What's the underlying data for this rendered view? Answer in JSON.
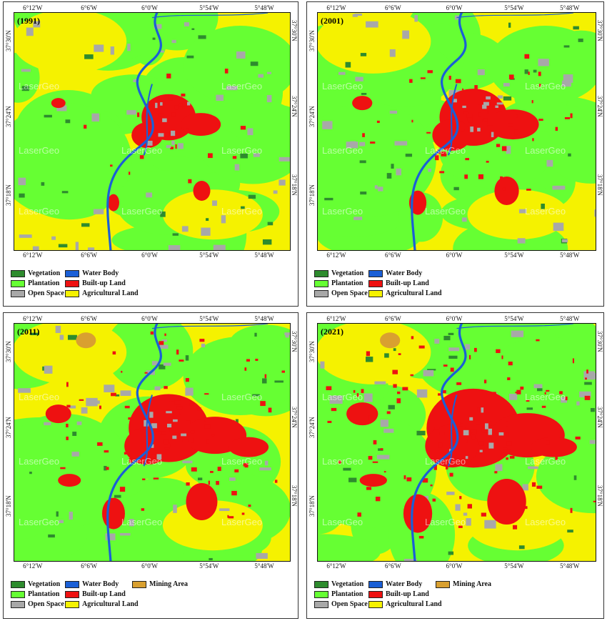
{
  "colors": {
    "vegetation": "#2e8b2e",
    "plantation": "#66ff33",
    "open_space": "#a8a8a8",
    "water_body": "#1a5fd6",
    "built_up": "#ee1111",
    "agricultural": "#f5f200",
    "mining": "#d9a030"
  },
  "ticks": {
    "lon": [
      "6°12'W",
      "6°6'W",
      "6°0'W",
      "5°54'W",
      "5°48'W"
    ],
    "lat": [
      "37°30'N",
      "37°24'N",
      "37°18'N"
    ]
  },
  "watermark": "LaserGeo",
  "panels": [
    {
      "year": "(1991)",
      "legend": [
        {
          "label": "Vegetation",
          "color_key": "vegetation"
        },
        {
          "label": "Plantation",
          "color_key": "plantation"
        },
        {
          "label": "Open Space",
          "color_key": "open_space"
        },
        {
          "label": "Water Body",
          "color_key": "water_body"
        },
        {
          "label": "Built-up Land",
          "color_key": "built_up"
        },
        {
          "label": "Agricultural Land",
          "color_key": "agricultural"
        }
      ]
    },
    {
      "year": "(2001)",
      "legend": [
        {
          "label": "Vegetation",
          "color_key": "vegetation"
        },
        {
          "label": "Plantation",
          "color_key": "plantation"
        },
        {
          "label": "Open Space",
          "color_key": "open_space"
        },
        {
          "label": "Water Body",
          "color_key": "water_body"
        },
        {
          "label": "Built-up Land",
          "color_key": "built_up"
        },
        {
          "label": "Agricultural Land",
          "color_key": "agricultural"
        }
      ]
    },
    {
      "year": "(2011)",
      "legend": [
        {
          "label": "Vegetation",
          "color_key": "vegetation"
        },
        {
          "label": "Plantation",
          "color_key": "plantation"
        },
        {
          "label": "Open Space",
          "color_key": "open_space"
        },
        {
          "label": "Water Body",
          "color_key": "water_body"
        },
        {
          "label": "Built-up Land",
          "color_key": "built_up"
        },
        {
          "label": "Agricultural Land",
          "color_key": "agricultural"
        },
        {
          "label": "Mining Area",
          "color_key": "mining"
        }
      ]
    },
    {
      "year": "(2021)",
      "legend": [
        {
          "label": "Vegetation",
          "color_key": "vegetation"
        },
        {
          "label": "Plantation",
          "color_key": "plantation"
        },
        {
          "label": "Open Space",
          "color_key": "open_space"
        },
        {
          "label": "Water Body",
          "color_key": "water_body"
        },
        {
          "label": "Built-up Land",
          "color_key": "built_up"
        },
        {
          "label": "Agricultural Land",
          "color_key": "agricultural"
        },
        {
          "label": "Mining Area",
          "color_key": "mining"
        }
      ]
    }
  ]
}
